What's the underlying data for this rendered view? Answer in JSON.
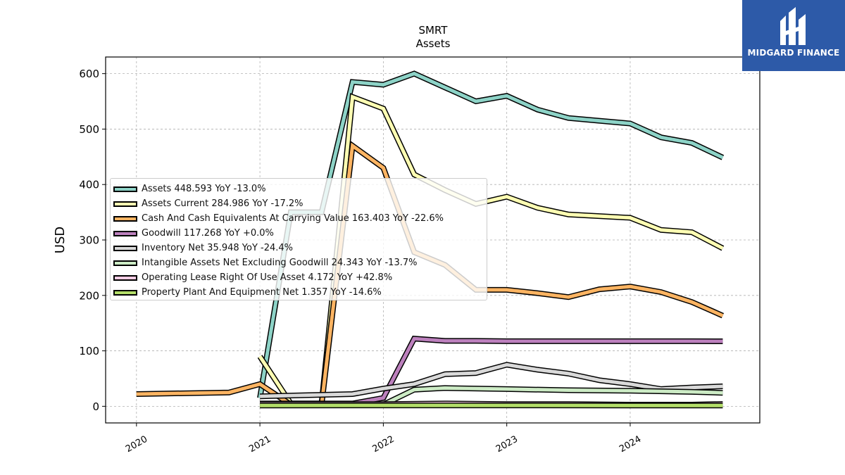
{
  "chart_data": {
    "type": "line",
    "title": "SMRT",
    "subtitle": "Assets",
    "ylabel": "USD",
    "xlabel": "",
    "xlim": [
      2019.75,
      2025.05
    ],
    "ylim": [
      -30,
      630
    ],
    "x_ticks": [
      "2020",
      "2021",
      "2022",
      "2023",
      "2024"
    ],
    "y_ticks": [
      0,
      100,
      200,
      300,
      400,
      500,
      600
    ],
    "grid": true,
    "legend_position": "center-left",
    "series": [
      {
        "name": "Assets",
        "color": "#8dd3c7",
        "legend_label": "Assets  448.593 YoY -13.0%",
        "points": [
          [
            2021.0,
            15
          ],
          [
            2021.25,
            350
          ],
          [
            2021.5,
            350
          ],
          [
            2021.75,
            585
          ],
          [
            2022.0,
            580
          ],
          [
            2022.25,
            600
          ],
          [
            2022.5,
            575
          ],
          [
            2022.75,
            550
          ],
          [
            2023.0,
            560
          ],
          [
            2023.25,
            535
          ],
          [
            2023.5,
            520
          ],
          [
            2023.75,
            515
          ],
          [
            2024.0,
            510
          ],
          [
            2024.25,
            485
          ],
          [
            2024.5,
            475
          ],
          [
            2024.75,
            448.593
          ]
        ]
      },
      {
        "name": "Assets Current",
        "color": "#ffffb3",
        "legend_label": "Assets Current  284.986 YoY -17.2%",
        "points": [
          [
            2021.0,
            90
          ],
          [
            2021.25,
            5
          ],
          [
            2021.5,
            5
          ],
          [
            2021.75,
            558
          ],
          [
            2022.0,
            537
          ],
          [
            2022.25,
            418
          ],
          [
            2022.5,
            390
          ],
          [
            2022.75,
            365
          ],
          [
            2023.0,
            378
          ],
          [
            2023.25,
            358
          ],
          [
            2023.5,
            346
          ],
          [
            2023.75,
            343
          ],
          [
            2024.0,
            340
          ],
          [
            2024.25,
            318
          ],
          [
            2024.5,
            314
          ],
          [
            2024.75,
            284.986
          ]
        ]
      },
      {
        "name": "Cash And Cash Equivalents At Carrying Value",
        "color": "#fdb462",
        "legend_label": "Cash And Cash Equivalents At Carrying Value  163.403 YoY -22.6%",
        "points": [
          [
            2020.0,
            22
          ],
          [
            2020.75,
            25
          ],
          [
            2021.0,
            40
          ],
          [
            2021.25,
            3
          ],
          [
            2021.5,
            3
          ],
          [
            2021.75,
            470
          ],
          [
            2022.0,
            430
          ],
          [
            2022.25,
            278
          ],
          [
            2022.5,
            255
          ],
          [
            2022.75,
            210
          ],
          [
            2023.0,
            210
          ],
          [
            2023.25,
            204
          ],
          [
            2023.5,
            197
          ],
          [
            2023.75,
            211
          ],
          [
            2024.0,
            216
          ],
          [
            2024.25,
            206
          ],
          [
            2024.5,
            188
          ],
          [
            2024.75,
            163.403
          ]
        ]
      },
      {
        "name": "Goodwill",
        "color": "#bc80bd",
        "legend_label": "Goodwill  117.268 YoY +0.0%",
        "points": [
          [
            2021.0,
            5
          ],
          [
            2021.75,
            5
          ],
          [
            2022.0,
            15
          ],
          [
            2022.25,
            122
          ],
          [
            2022.5,
            118
          ],
          [
            2022.75,
            118
          ],
          [
            2023.0,
            117.3
          ],
          [
            2023.5,
            117.3
          ],
          [
            2024.0,
            117.3
          ],
          [
            2024.5,
            117.3
          ],
          [
            2024.75,
            117.268
          ]
        ]
      },
      {
        "name": "Inventory Net",
        "color": "#d9d9d9",
        "legend_label": "Inventory Net  35.948 YoY -24.4%",
        "points": [
          [
            2021.0,
            18
          ],
          [
            2021.75,
            22
          ],
          [
            2022.0,
            32
          ],
          [
            2022.25,
            40
          ],
          [
            2022.5,
            58
          ],
          [
            2022.75,
            60
          ],
          [
            2023.0,
            75
          ],
          [
            2023.25,
            66
          ],
          [
            2023.5,
            59
          ],
          [
            2023.75,
            47
          ],
          [
            2024.0,
            40
          ],
          [
            2024.25,
            31
          ],
          [
            2024.5,
            34
          ],
          [
            2024.75,
            35.948
          ]
        ]
      },
      {
        "name": "Intangible Assets Net Excluding Goodwill",
        "color": "#ccebc5",
        "legend_label": "Intangible Assets Net Excluding Goodwill  24.343 YoY -13.7%",
        "points": [
          [
            2021.0,
            3
          ],
          [
            2022.0,
            3
          ],
          [
            2022.25,
            30
          ],
          [
            2022.5,
            33
          ],
          [
            2023.0,
            31
          ],
          [
            2023.5,
            29
          ],
          [
            2024.0,
            28
          ],
          [
            2024.5,
            26
          ],
          [
            2024.75,
            24.343
          ]
        ]
      },
      {
        "name": "Operating Lease Right Of Use Asset",
        "color": "#fccde5",
        "legend_label": "Operating Lease Right Of Use Asset  4.172 YoY +42.8%",
        "points": [
          [
            2021.0,
            4
          ],
          [
            2022.0,
            4
          ],
          [
            2022.5,
            5
          ],
          [
            2023.0,
            4
          ],
          [
            2023.5,
            4
          ],
          [
            2024.0,
            3
          ],
          [
            2024.5,
            3
          ],
          [
            2024.75,
            4.172
          ]
        ]
      },
      {
        "name": "Property Plant And Equipment Net",
        "color": "#b3de69",
        "legend_label": "Property Plant And Equipment Net  1.357 YoY -14.6%",
        "points": [
          [
            2021.0,
            1.5
          ],
          [
            2022.0,
            1.6
          ],
          [
            2023.0,
            1.6
          ],
          [
            2024.0,
            1.5
          ],
          [
            2024.75,
            1.357
          ]
        ]
      }
    ]
  },
  "logo": {
    "text": "MIDGARD FINANCE"
  }
}
